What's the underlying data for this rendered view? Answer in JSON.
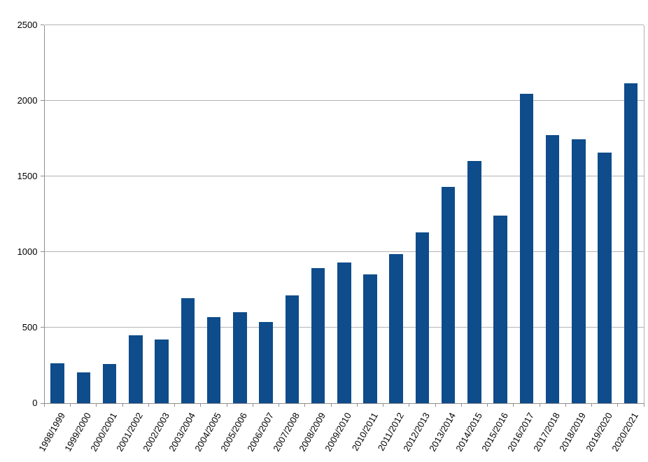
{
  "chart_data": {
    "type": "bar",
    "title": "",
    "xlabel": "",
    "ylabel": "",
    "categories": [
      "1998/1999",
      "1999/2000",
      "2000/2001",
      "2001/2002",
      "2002/2003",
      "2003/2004",
      "2004/2005",
      "2005/2006",
      "2006/2007",
      "2007/2008",
      "2008/2009",
      "2009/2010",
      "2010/2011",
      "2011/2012",
      "2012/2013",
      "2013/2014",
      "2014/2015",
      "2015/2016",
      "2016/2017",
      "2017/2018",
      "2018/2019",
      "2019/2020",
      "2020/2021"
    ],
    "values": [
      265,
      205,
      260,
      450,
      420,
      695,
      570,
      600,
      535,
      710,
      895,
      930,
      850,
      985,
      1130,
      1430,
      1600,
      1240,
      2045,
      1770,
      1745,
      1655,
      2115
    ],
    "ylim": [
      0,
      2500
    ],
    "yticks": [
      0,
      500,
      1000,
      1500,
      2000,
      2500
    ],
    "ytick_labels": [
      "0",
      "500",
      "1000",
      "1500",
      "2000",
      "2500"
    ],
    "grid": true,
    "legend": null,
    "colors": {
      "bar": "#0e4c8b",
      "gridline": "#b3b3b3",
      "axis": "#8f8f8f",
      "text": "#000000",
      "background": "#ffffff"
    }
  }
}
